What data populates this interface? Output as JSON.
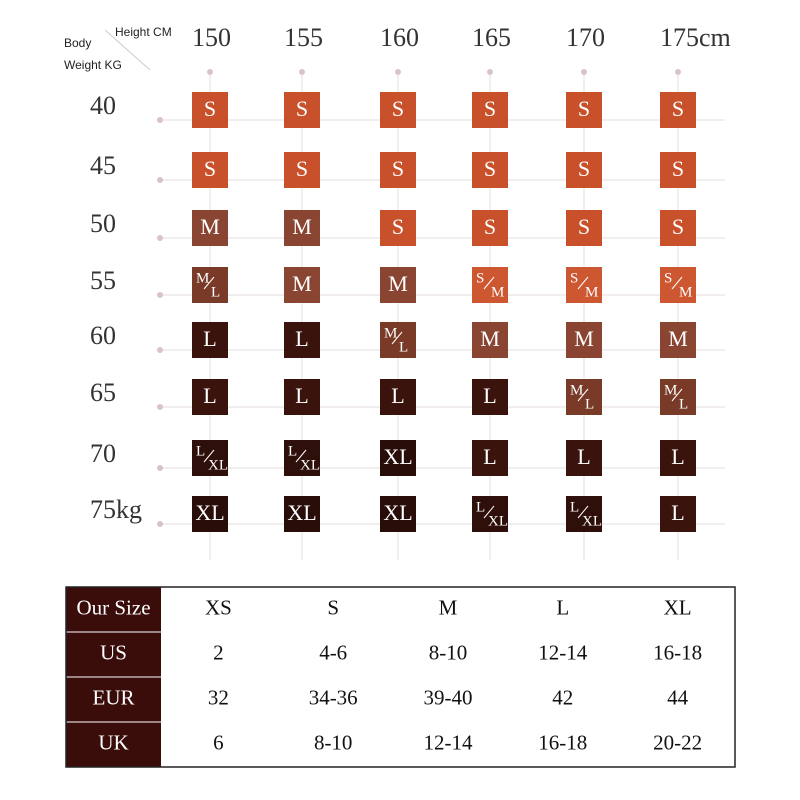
{
  "header": {
    "body": "Body",
    "height": "Height CM",
    "weight": "Weight  KG"
  },
  "heights": [
    "150",
    "155",
    "160",
    "165",
    "170",
    "175cm"
  ],
  "weights": [
    "40",
    "45",
    "50",
    "55",
    "60",
    "65",
    "70",
    "75kg"
  ],
  "grid": [
    [
      "S",
      "S",
      "S",
      "S",
      "S",
      "S"
    ],
    [
      "S",
      "S",
      "S",
      "S",
      "S",
      "S"
    ],
    [
      "M",
      "M",
      "S",
      "S",
      "S",
      "S"
    ],
    [
      [
        "M",
        "L"
      ],
      "M",
      "M",
      [
        "S",
        "M"
      ],
      [
        "S",
        "M"
      ],
      [
        "S",
        "M"
      ]
    ],
    [
      "L",
      "L",
      [
        "M",
        "L"
      ],
      "M",
      "M",
      "M"
    ],
    [
      "L",
      "L",
      "L",
      "L",
      [
        "M",
        "L"
      ],
      [
        "M",
        "L"
      ]
    ],
    [
      [
        "L",
        "XL"
      ],
      [
        "L",
        "XL"
      ],
      "XL",
      "L",
      "L",
      "L"
    ],
    [
      "XL",
      "XL",
      "XL",
      [
        "L",
        "XL"
      ],
      [
        "L",
        "XL"
      ],
      "L"
    ]
  ],
  "colors": {
    "S": "#c8502a",
    "S/M": "#cc5730",
    "M": "#8a4532",
    "M/L": "#7a3a28",
    "L": "#3a130d",
    "L/XL": "#2e0f0a",
    "XL": "#290d09"
  },
  "table": {
    "header": [
      "Our Size",
      "XS",
      "S",
      "M",
      "L",
      "XL"
    ],
    "rows": [
      [
        "US",
        "2",
        "4-6",
        "8-10",
        "12-14",
        "16-18"
      ],
      [
        "EUR",
        "32",
        "34-36",
        "39-40",
        "42",
        "44"
      ],
      [
        "UK",
        "6",
        "8-10",
        "12-14",
        "16-18",
        "20-22"
      ]
    ]
  }
}
